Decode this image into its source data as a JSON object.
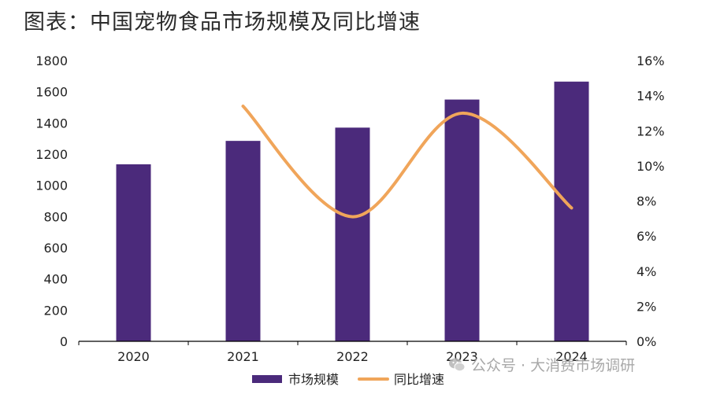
{
  "title": "图表：中国宠物食品市场规模及同比增速",
  "watermark": {
    "text": "公众号 · 大消费市场调研",
    "icon": "wechat-icon"
  },
  "colors": {
    "bar": "#4b2a7b",
    "line": "#f0a55a",
    "axis": "#000000",
    "text": "#222222"
  },
  "chart_data": {
    "type": "bar",
    "categories": [
      "2020",
      "2021",
      "2022",
      "2023",
      "2024"
    ],
    "series": [
      {
        "name": "市场规模",
        "type": "bar",
        "axis": "left",
        "values": [
          1135,
          1285,
          1370,
          1550,
          1665
        ]
      },
      {
        "name": "同比增速",
        "type": "line",
        "axis": "right",
        "values": [
          null,
          0.134,
          0.071,
          0.13,
          0.076
        ]
      }
    ],
    "ylim_left": [
      0,
      1800
    ],
    "yticks_left": [
      "0",
      "200",
      "400",
      "600",
      "800",
      "1000",
      "1200",
      "1400",
      "1600",
      "1800"
    ],
    "ylim_right": [
      0,
      0.16
    ],
    "yticks_right": [
      "0%",
      "2%",
      "4%",
      "6%",
      "8%",
      "10%",
      "12%",
      "14%",
      "16%"
    ],
    "legend_position": "bottom-center",
    "grid": false
  }
}
